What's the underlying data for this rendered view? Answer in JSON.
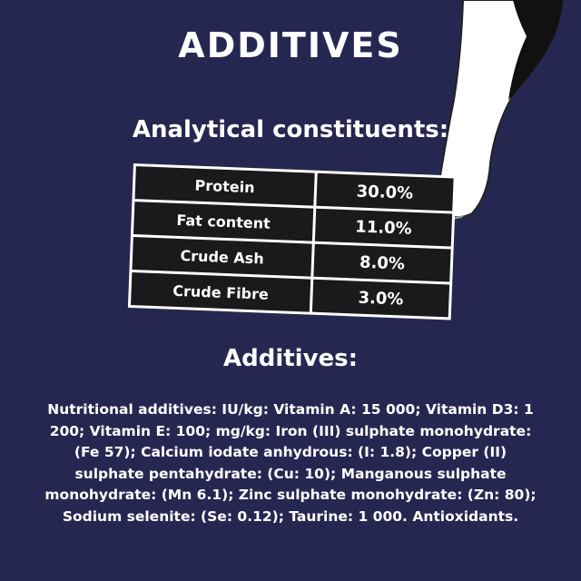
{
  "title": "ADDITIVES",
  "analytical": {
    "heading": "Analytical constituents:",
    "rows": [
      {
        "label": "Protein",
        "value": "30.0%"
      },
      {
        "label": "Fat content",
        "value": "11.0%"
      },
      {
        "label": "Crude Ash",
        "value": "8.0%"
      },
      {
        "label": "Crude Fibre",
        "value": "3.0%"
      }
    ]
  },
  "additives": {
    "heading": "Additives:",
    "lines": [
      "Nutritional additives: IU/kg: Vitamin A: 15 000; Vitamin D3: 1",
      "200; Vitamin E: 100; mg/kg: Iron (III) sulphate monohydrate:",
      "(Fe 57); Calcium iodate anhydrous: (I: 1.8); Copper (II)",
      "sulphate pentahydrate: (Cu: 10); Manganous sulphate",
      "monohydrate: (Mn 6.1); Zinc sulphate monohydrate: (Zn: 80);",
      "Sodium selenite: (Se: 0.12); Taurine: 1 000. Antioxidants."
    ]
  },
  "colors": {
    "background": "#262751",
    "table_cell": "#1a1a1c",
    "text": "#ffffff"
  }
}
